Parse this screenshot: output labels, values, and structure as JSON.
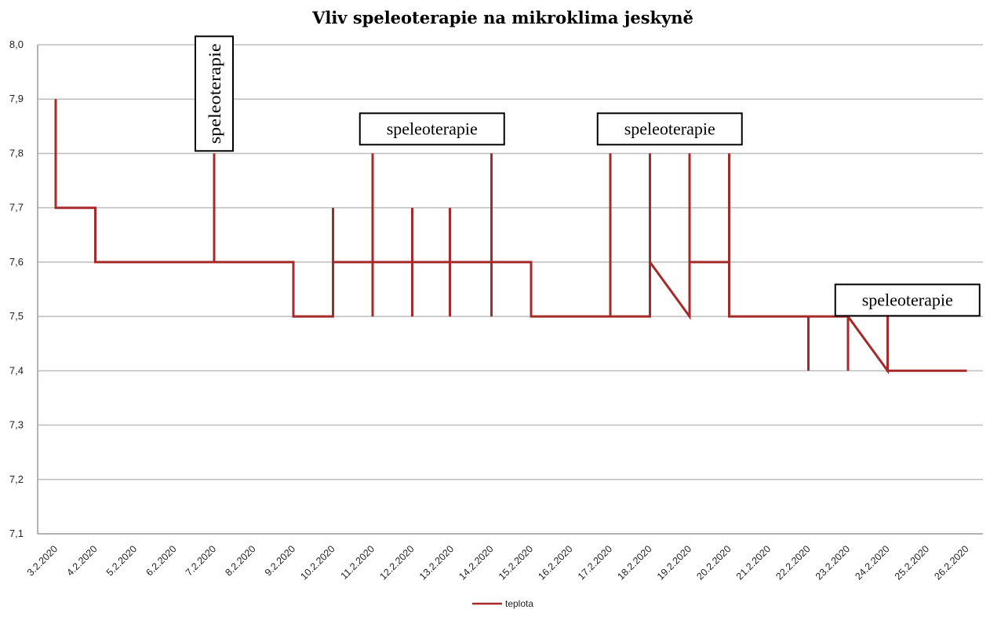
{
  "chart_data": {
    "type": "line",
    "title": "Vliv speleoterapie na mikroklima jeskyně",
    "xlabel": "",
    "ylabel": "",
    "ylim": [
      7.1,
      8.0
    ],
    "y_ticks": [
      "7,1",
      "7,2",
      "7,3",
      "7,4",
      "7,5",
      "7,6",
      "7,7",
      "7,8",
      "7,9",
      "8,0"
    ],
    "categories": [
      "3.2.2020",
      "4.2.2020",
      "5.2.2020",
      "6.2.2020",
      "7.2.2020",
      "8.2.2020",
      "9.2.2020",
      "10.2.2020",
      "11.2.2020",
      "12.2.2020",
      "13.2.2020",
      "14.2.2020",
      "15.2.2020",
      "16.2.2020",
      "17.2.2020",
      "18.2.2020",
      "19.2.2020",
      "20.2.2020",
      "21.2.2020",
      "22.2.2020",
      "23.2.2020",
      "24.2.2020",
      "25.2.2020",
      "26.2.2020"
    ],
    "series": [
      {
        "name": "teplota",
        "color": "#a52a2a",
        "points": [
          [
            0,
            7.9
          ],
          [
            0,
            7.7
          ],
          [
            1,
            7.7
          ],
          [
            1,
            7.6
          ],
          [
            4,
            7.6
          ],
          [
            4,
            7.8
          ],
          [
            4,
            7.6
          ],
          [
            6,
            7.6
          ],
          [
            6,
            7.5
          ],
          [
            7,
            7.5
          ],
          [
            7,
            7.7
          ],
          [
            7,
            7.6
          ],
          [
            8,
            7.6
          ],
          [
            8,
            7.8
          ],
          [
            8,
            7.5
          ],
          [
            8,
            7.6
          ],
          [
            9,
            7.6
          ],
          [
            9,
            7.7
          ],
          [
            9,
            7.5
          ],
          [
            9,
            7.6
          ],
          [
            9.95,
            7.6
          ],
          [
            9.95,
            7.7
          ],
          [
            9.95,
            7.5
          ],
          [
            9.95,
            7.6
          ],
          [
            11,
            7.6
          ],
          [
            11,
            7.8
          ],
          [
            11,
            7.5
          ],
          [
            11,
            7.6
          ],
          [
            12,
            7.6
          ],
          [
            12,
            7.5
          ],
          [
            14,
            7.5
          ],
          [
            14,
            7.8
          ],
          [
            14,
            7.5
          ],
          [
            15,
            7.5
          ],
          [
            15,
            7.8
          ],
          [
            15,
            7.6
          ],
          [
            16,
            7.5
          ],
          [
            16,
            7.8
          ],
          [
            16,
            7.6
          ],
          [
            17,
            7.6
          ],
          [
            17,
            7.8
          ],
          [
            17,
            7.5
          ],
          [
            19,
            7.5
          ],
          [
            19,
            7.4
          ],
          [
            19,
            7.5
          ],
          [
            20,
            7.5
          ],
          [
            20,
            7.4
          ],
          [
            20,
            7.5
          ],
          [
            21,
            7.4
          ],
          [
            21,
            7.5
          ],
          [
            21,
            7.4
          ],
          [
            23,
            7.4
          ]
        ]
      }
    ],
    "annotations": [
      {
        "text": "speleoterapie",
        "at_x": 4,
        "at_y": 7.91,
        "vertical": true
      },
      {
        "text": "speleoterapie",
        "at_x": 9.5,
        "at_y": 7.845,
        "vertical": false
      },
      {
        "text": "speleoterapie",
        "at_x": 15.5,
        "at_y": 7.845,
        "vertical": false
      },
      {
        "text": "speleoterapie",
        "at_x": 21.5,
        "at_y": 7.53,
        "vertical": false
      }
    ],
    "grid": true,
    "legend": "bottom"
  }
}
